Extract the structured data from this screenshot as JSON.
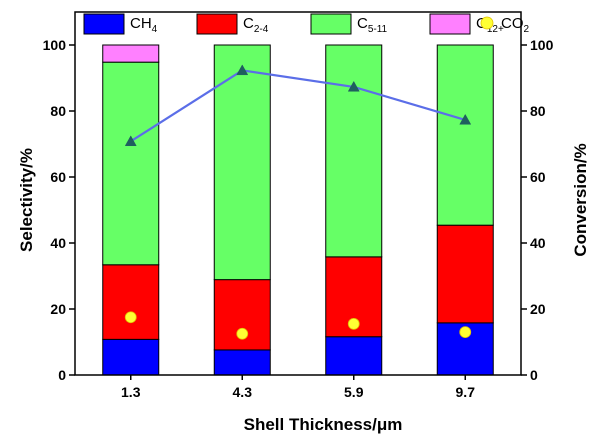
{
  "chart_data": {
    "type": "bar",
    "subtype": "stacked-bar-with-line",
    "categories": [
      "1.3",
      "4.3",
      "5.9",
      "9.7"
    ],
    "series": [
      {
        "name": "CH4",
        "name_main": "CH",
        "name_sub": "4",
        "color": "#0000ff",
        "values": [
          10.8,
          7.6,
          11.6,
          15.8
        ]
      },
      {
        "name": "C2-4",
        "name_main": "C",
        "name_sub": "2-4",
        "color": "#ff0000",
        "values": [
          22.6,
          21.3,
          24.2,
          29.6
        ]
      },
      {
        "name": "C5-11",
        "name_main": "C",
        "name_sub": "5-11",
        "color": "#66ff66",
        "values": [
          61.4,
          71.1,
          64.2,
          54.6
        ]
      },
      {
        "name": "C12+",
        "name_main": "C",
        "name_sub": "12+",
        "color": "#ff80ff",
        "values": [
          5.2,
          0,
          0,
          0
        ]
      }
    ],
    "co2": {
      "name": "CO2",
      "name_main": "CO",
      "name_sub": "2",
      "color": "#ffff33",
      "values": [
        17.5,
        12.5,
        15.5,
        13.0
      ]
    },
    "conversion": {
      "name": "Conversion",
      "line_color": "#5b6ee8",
      "marker_color": "#1f5f5f",
      "values": [
        70.8,
        92.3,
        87.3,
        77.3
      ]
    },
    "xlabel": "Shell Thickness/μm",
    "ylabel": "Selectivity/%",
    "y2label": "Conversion/%",
    "ylim": [
      0,
      110
    ],
    "y2lim": [
      0,
      110
    ],
    "yticks": [
      "0",
      "20",
      "40",
      "60",
      "80",
      "100"
    ],
    "y2ticks": [
      "0",
      "20",
      "40",
      "60",
      "80",
      "100"
    ],
    "legend_position": "top"
  }
}
